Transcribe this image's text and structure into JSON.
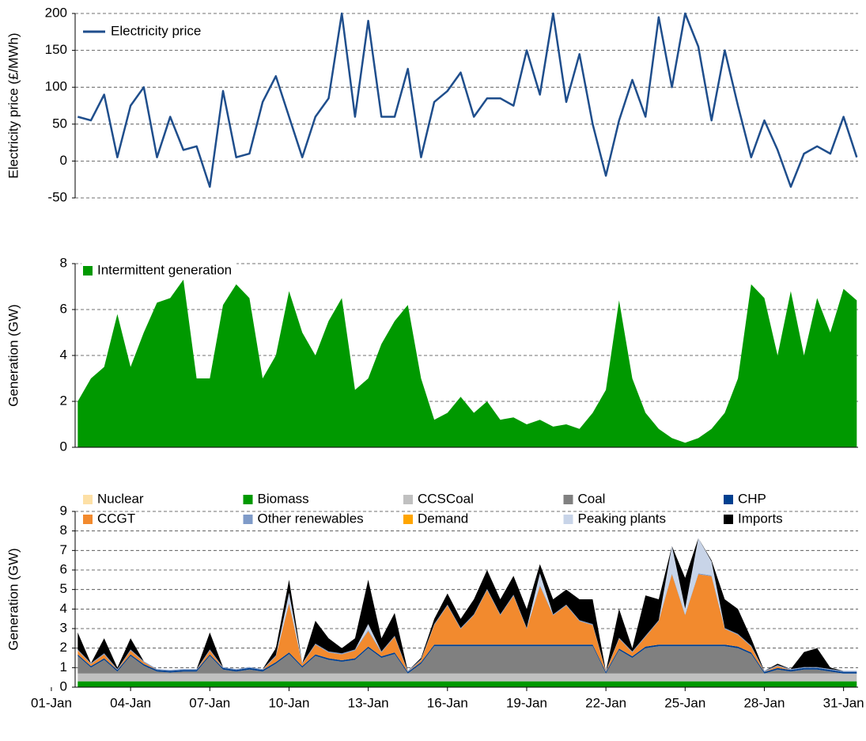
{
  "chart_data": [
    {
      "type": "line",
      "y_label": "Electricity price (£/MWh)",
      "x": [
        2,
        2.5,
        3,
        3.5,
        4,
        4.5,
        5,
        5.5,
        6,
        6.5,
        7,
        7.5,
        8,
        8.5,
        9,
        9.5,
        10,
        10.5,
        11,
        11.5,
        12,
        12.5,
        13,
        13.5,
        14,
        14.5,
        15,
        15.5,
        16,
        16.5,
        17,
        17.5,
        18,
        18.5,
        19,
        19.5,
        20,
        20.5,
        21,
        21.5,
        22,
        22.5,
        23,
        23.5,
        24,
        24.5,
        25,
        25.5,
        26,
        26.5,
        27,
        27.5,
        28,
        28.5,
        29,
        29.5,
        30,
        30.5,
        31,
        31.5
      ],
      "series": [
        {
          "name": "Electricity price",
          "color": "#1f4e8c",
          "values": [
            60,
            55,
            90,
            5,
            75,
            100,
            5,
            60,
            15,
            20,
            -35,
            95,
            5,
            10,
            80,
            115,
            60,
            5,
            60,
            85,
            200,
            60,
            190,
            60,
            60,
            125,
            5,
            80,
            95,
            120,
            60,
            85,
            85,
            75,
            150,
            90,
            200,
            80,
            145,
            50,
            -20,
            55,
            110,
            60,
            195,
            100,
            200,
            155,
            55,
            150,
            75,
            5,
            55,
            15,
            -35,
            10,
            20,
            10,
            60,
            5
          ]
        }
      ],
      "xlim": [
        1.9,
        31.55
      ],
      "ylim": [
        -50,
        200
      ],
      "yticks": [
        -50,
        0,
        50,
        100,
        150,
        200
      ],
      "grid": true
    },
    {
      "type": "area",
      "y_label": "Generation (GW)",
      "x": [
        2,
        2.5,
        3,
        3.5,
        4,
        4.5,
        5,
        5.5,
        6,
        6.5,
        7,
        7.5,
        8,
        8.5,
        9,
        9.5,
        10,
        10.5,
        11,
        11.5,
        12,
        12.5,
        13,
        13.5,
        14,
        14.5,
        15,
        15.5,
        16,
        16.5,
        17,
        17.5,
        18,
        18.5,
        19,
        19.5,
        20,
        20.5,
        21,
        21.5,
        22,
        22.5,
        23,
        23.5,
        24,
        24.5,
        25,
        25.5,
        26,
        26.5,
        27,
        27.5,
        28,
        28.5,
        29,
        29.5,
        30,
        30.5,
        31,
        31.5
      ],
      "series": [
        {
          "name": "Intermittent generation",
          "color": "#009900",
          "values": [
            2,
            3,
            3.5,
            5.8,
            3.5,
            5,
            6.3,
            6.5,
            7.3,
            3,
            3,
            6.2,
            7.1,
            6.5,
            3,
            4,
            6.8,
            5,
            4,
            5.5,
            6.5,
            2.5,
            3,
            4.5,
            5.5,
            6.2,
            3,
            1.2,
            1.5,
            2.2,
            1.5,
            2,
            1.2,
            1.3,
            1,
            1.2,
            0.9,
            1,
            0.8,
            1.5,
            2.5,
            6.4,
            3,
            1.5,
            0.8,
            0.4,
            0.2,
            0.4,
            0.8,
            1.5,
            3,
            7.1,
            6.5,
            4,
            6.8,
            4,
            6.5,
            5,
            6.9,
            6.4
          ]
        }
      ],
      "xlim": [
        1.9,
        31.55
      ],
      "ylim": [
        0,
        8
      ],
      "yticks": [
        0,
        2,
        4,
        6,
        8
      ],
      "grid": true
    },
    {
      "type": "stacked_area",
      "y_label": "Generation (GW)",
      "x": [
        2,
        2.5,
        3,
        3.5,
        4,
        4.5,
        5,
        5.5,
        6,
        6.5,
        7,
        7.5,
        8,
        8.5,
        9,
        9.5,
        10,
        10.5,
        11,
        11.5,
        12,
        12.5,
        13,
        13.5,
        14,
        14.5,
        15,
        15.5,
        16,
        16.5,
        17,
        17.5,
        18,
        18.5,
        19,
        19.5,
        20,
        20.5,
        21,
        21.5,
        22,
        22.5,
        23,
        23.5,
        24,
        24.5,
        25,
        25.5,
        26,
        26.5,
        27,
        27.5,
        28,
        28.5,
        29,
        29.5,
        30,
        30.5,
        31,
        31.5
      ],
      "series": [
        {
          "name": "Nuclear",
          "color": "#fde0a6",
          "values": [
            0,
            0,
            0,
            0,
            0,
            0,
            0,
            0,
            0,
            0,
            0,
            0,
            0,
            0,
            0,
            0,
            0,
            0,
            0,
            0,
            0,
            0,
            0,
            0,
            0,
            0,
            0,
            0,
            0,
            0,
            0,
            0,
            0,
            0,
            0,
            0,
            0,
            0,
            0,
            0,
            0,
            0,
            0,
            0,
            0,
            0,
            0,
            0,
            0,
            0,
            0,
            0,
            0,
            0,
            0,
            0,
            0,
            0,
            0,
            0
          ]
        },
        {
          "name": "Biomass",
          "color": "#009900",
          "values": [
            0.3,
            0.3,
            0.3,
            0.3,
            0.3,
            0.3,
            0.3,
            0.3,
            0.3,
            0.3,
            0.3,
            0.3,
            0.3,
            0.3,
            0.3,
            0.3,
            0.3,
            0.3,
            0.3,
            0.3,
            0.3,
            0.3,
            0.3,
            0.3,
            0.3,
            0.3,
            0.3,
            0.3,
            0.3,
            0.3,
            0.3,
            0.3,
            0.3,
            0.3,
            0.3,
            0.3,
            0.3,
            0.3,
            0.3,
            0.3,
            0.3,
            0.3,
            0.3,
            0.3,
            0.3,
            0.3,
            0.3,
            0.3,
            0.3,
            0.3,
            0.3,
            0.3,
            0.3,
            0.3,
            0.3,
            0.3,
            0.3,
            0.3,
            0.3,
            0.3
          ]
        },
        {
          "name": "CCSCoal",
          "color": "#c0c0c0",
          "values": [
            0.4,
            0.4,
            0.4,
            0.4,
            0.4,
            0.4,
            0.4,
            0.4,
            0.4,
            0.4,
            0.4,
            0.4,
            0.4,
            0.4,
            0.4,
            0.4,
            0.4,
            0.4,
            0.4,
            0.4,
            0.4,
            0.4,
            0.4,
            0.4,
            0.4,
            0.4,
            0.4,
            0.4,
            0.4,
            0.4,
            0.4,
            0.4,
            0.4,
            0.4,
            0.4,
            0.4,
            0.4,
            0.4,
            0.4,
            0.4,
            0.4,
            0.4,
            0.4,
            0.4,
            0.4,
            0.4,
            0.4,
            0.4,
            0.4,
            0.4,
            0.4,
            0.4,
            0.4,
            0.4,
            0.4,
            0.4,
            0.4,
            0.4,
            0.4,
            0.4
          ]
        },
        {
          "name": "Coal",
          "color": "#808080",
          "values": [
            0.9,
            0.3,
            0.7,
            0.1,
            0.9,
            0.4,
            0.1,
            0.05,
            0.1,
            0.1,
            0.9,
            0.2,
            0.1,
            0.2,
            0.1,
            0.5,
            1.0,
            0.3,
            0.9,
            0.7,
            0.6,
            0.7,
            1.3,
            0.8,
            1.0,
            0.0,
            0.5,
            1.4,
            1.4,
            1.4,
            1.4,
            1.4,
            1.4,
            1.4,
            1.4,
            1.4,
            1.4,
            1.4,
            1.4,
            1.4,
            0.0,
            1.2,
            0.8,
            1.3,
            1.4,
            1.4,
            1.4,
            1.4,
            1.4,
            1.4,
            1.3,
            1.0,
            0.0,
            0.2,
            0.1,
            0.2,
            0.2,
            0.1,
            0.0,
            0.0
          ]
        },
        {
          "name": "CHP",
          "color": "#003f8f",
          "values": [
            0.08,
            0.08,
            0.08,
            0.08,
            0.08,
            0.08,
            0.08,
            0.08,
            0.08,
            0.08,
            0.08,
            0.08,
            0.08,
            0.08,
            0.08,
            0.08,
            0.08,
            0.08,
            0.08,
            0.08,
            0.08,
            0.08,
            0.08,
            0.08,
            0.08,
            0.08,
            0.08,
            0.08,
            0.08,
            0.08,
            0.08,
            0.08,
            0.08,
            0.08,
            0.08,
            0.08,
            0.08,
            0.08,
            0.08,
            0.08,
            0.08,
            0.08,
            0.08,
            0.08,
            0.08,
            0.08,
            0.08,
            0.08,
            0.08,
            0.08,
            0.08,
            0.08,
            0.08,
            0.08,
            0.08,
            0.08,
            0.08,
            0.08,
            0.08,
            0.08
          ]
        },
        {
          "name": "CCGT",
          "color": "#f28a2e",
          "values": [
            0.2,
            0.1,
            0.2,
            0,
            0.2,
            0.1,
            0,
            0,
            0,
            0,
            0.2,
            0,
            0,
            0,
            0,
            0.3,
            2.5,
            0.1,
            0.5,
            0.3,
            0.3,
            0.4,
            0.8,
            0.2,
            0.8,
            0,
            0.1,
            1.0,
            2.0,
            0.8,
            1.5,
            2.8,
            1.5,
            2.5,
            0.8,
            3.0,
            1.5,
            2.0,
            1.2,
            1.0,
            0,
            0.5,
            0.2,
            0.5,
            1.2,
            3.6,
            1.5,
            3.6,
            3.5,
            0.8,
            0.6,
            0.3,
            0,
            0.1,
            0,
            0,
            0,
            0,
            0,
            0
          ]
        },
        {
          "name": "Other renewables",
          "color": "#7f9bc8",
          "values": [
            0.05,
            0.05,
            0.05,
            0.05,
            0.05,
            0.05,
            0.05,
            0.05,
            0.05,
            0.05,
            0.05,
            0.05,
            0.05,
            0.05,
            0.05,
            0.05,
            0.05,
            0.05,
            0.05,
            0.05,
            0.05,
            0.05,
            0.05,
            0.05,
            0.05,
            0.05,
            0.05,
            0.05,
            0.05,
            0.05,
            0.05,
            0.05,
            0.05,
            0.05,
            0.05,
            0.05,
            0.05,
            0.05,
            0.05,
            0.05,
            0.05,
            0.05,
            0.05,
            0.05,
            0.05,
            0.05,
            0.05,
            0.05,
            0.05,
            0.05,
            0.05,
            0.05,
            0.05,
            0.05,
            0.05,
            0.05,
            0.05,
            0.05,
            0.05,
            0.05
          ]
        },
        {
          "name": "Demand",
          "color": "#ffa500",
          "values": [
            0,
            0,
            0,
            0,
            0,
            0,
            0,
            0,
            0,
            0,
            0,
            0,
            0,
            0,
            0,
            0,
            0,
            0,
            0,
            0,
            0,
            0,
            0,
            0,
            0,
            0,
            0,
            0,
            0,
            0,
            0,
            0,
            0,
            0,
            0,
            0,
            0,
            0,
            0,
            0,
            0,
            0,
            0,
            0,
            0,
            0,
            0,
            0,
            0,
            0,
            0,
            0,
            0,
            0,
            0,
            0,
            0,
            0,
            0,
            0
          ]
        },
        {
          "name": "Peaking plants",
          "color": "#c8d4e8",
          "values": [
            0,
            0,
            0,
            0,
            0,
            0,
            0,
            0,
            0,
            0,
            0,
            0,
            0,
            0,
            0,
            0,
            0.5,
            0,
            0,
            0,
            0,
            0,
            0.3,
            0,
            0,
            0,
            0,
            0,
            0,
            0,
            0,
            0,
            0,
            0,
            0,
            0.6,
            0,
            0,
            0,
            0,
            0,
            0,
            0,
            0,
            0,
            1.4,
            0.3,
            1.8,
            0.7,
            0,
            0,
            0,
            0,
            0,
            0,
            0,
            0,
            0,
            0,
            0
          ]
        },
        {
          "name": "Imports",
          "color": "#000000",
          "values": [
            0.87,
            0,
            0.77,
            0.07,
            0.57,
            0,
            0,
            0,
            0,
            0,
            0.87,
            0,
            0,
            0,
            0,
            0.37,
            0.67,
            0,
            1.17,
            0.67,
            0.27,
            0.57,
            2.27,
            0.67,
            1.17,
            0,
            0.07,
            0.27,
            0.57,
            0.47,
            0.77,
            0.97,
            0.77,
            0.97,
            0.97,
            0.47,
            0.77,
            0.77,
            1.07,
            1.27,
            0,
            1.47,
            0.17,
            2.07,
            1.07,
            0,
            1.57,
            0,
            0.07,
            1.47,
            1.27,
            0.37,
            0,
            0.07,
            0,
            0.77,
            0.97,
            0.07,
            0,
            0
          ]
        }
      ],
      "xlim": [
        1.9,
        31.55
      ],
      "xticks": [
        {
          "value": 1,
          "label": "01-Jan"
        },
        {
          "value": 4,
          "label": "04-Jan"
        },
        {
          "value": 7,
          "label": "07-Jan"
        },
        {
          "value": 10,
          "label": "10-Jan"
        },
        {
          "value": 13,
          "label": "13-Jan"
        },
        {
          "value": 16,
          "label": "16-Jan"
        },
        {
          "value": 19,
          "label": "19-Jan"
        },
        {
          "value": 22,
          "label": "22-Jan"
        },
        {
          "value": 25,
          "label": "25-Jan"
        },
        {
          "value": 28,
          "label": "28-Jan"
        },
        {
          "value": 31,
          "label": "31-Jan"
        }
      ],
      "ylim": [
        0,
        9
      ],
      "yticks": [
        0,
        1,
        2,
        3,
        4,
        5,
        6,
        7,
        8,
        9
      ],
      "grid": true
    }
  ]
}
